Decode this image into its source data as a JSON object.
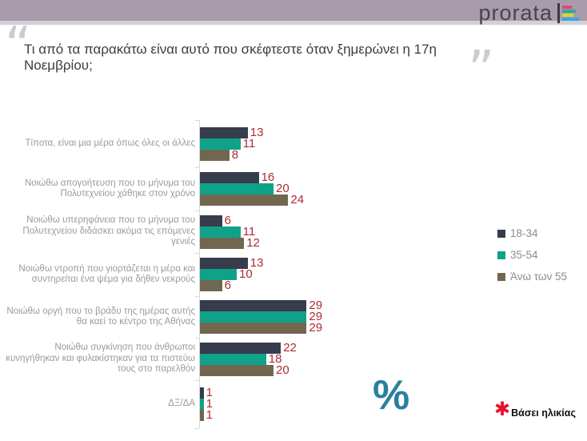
{
  "header": {
    "logo_text": "prorata",
    "bar_color": "#a89cab",
    "logo_mark_colors": [
      "#e3447e",
      "#2fa98e",
      "#d8d23e",
      "#36a9dc"
    ]
  },
  "title": {
    "text": "Τι από τα παρακάτω είναι αυτό που σκέφτεστε όταν ξημερώνει η 17η Νοεμβρίου;",
    "open_quote": "“",
    "close_quote": "”"
  },
  "chart_data": {
    "type": "bar",
    "orientation": "horizontal",
    "unit": "%",
    "categories": [
      "Τίποτα, είναι μια μέρα όπως όλες οι άλλες",
      "Νοιώθω απογοήτευση που το μήνυμα του Πολυτεχνείου χάθηκε στον χρόνο",
      "Νοιώθω υπερηφάνεια που το μήνυμα του Πολυτεχνείου διδάσκει ακόμα τις επόμενες γενιές",
      "Νοιώθω ντροπή που γιορτάζεται η μέρα και συντηρείται ένα ψέμα για δήθεν νεκρούς",
      "Νοιώθω οργή που το βράδυ της ημέρας αυτής θα καεί το κέντρο της Αθήνας",
      "Νοιώθω συγκίνηση που άνθρωποι κυνηγήθηκαν και φυλακίστηκαν για τα πιστεύω τους στο παρελθόν",
      "ΔΞ/ΔΑ"
    ],
    "series": [
      {
        "name": "18-34",
        "color": "#363c4b",
        "values": [
          13,
          16,
          6,
          13,
          29,
          22,
          1
        ]
      },
      {
        "name": "35-54",
        "color": "#10a189",
        "values": [
          11,
          20,
          11,
          10,
          29,
          18,
          1
        ]
      },
      {
        "name": "Άνω των 55",
        "color": "#716751",
        "values": [
          8,
          24,
          12,
          6,
          29,
          20,
          1
        ]
      }
    ],
    "value_label_color": "#ae2b33",
    "xlim": [
      0,
      30
    ],
    "grid": false,
    "legend_position": "right"
  },
  "annotations": {
    "percent_symbol": "%",
    "footnote_marker": "✱",
    "footnote": "Βάσει ηλικίας"
  }
}
